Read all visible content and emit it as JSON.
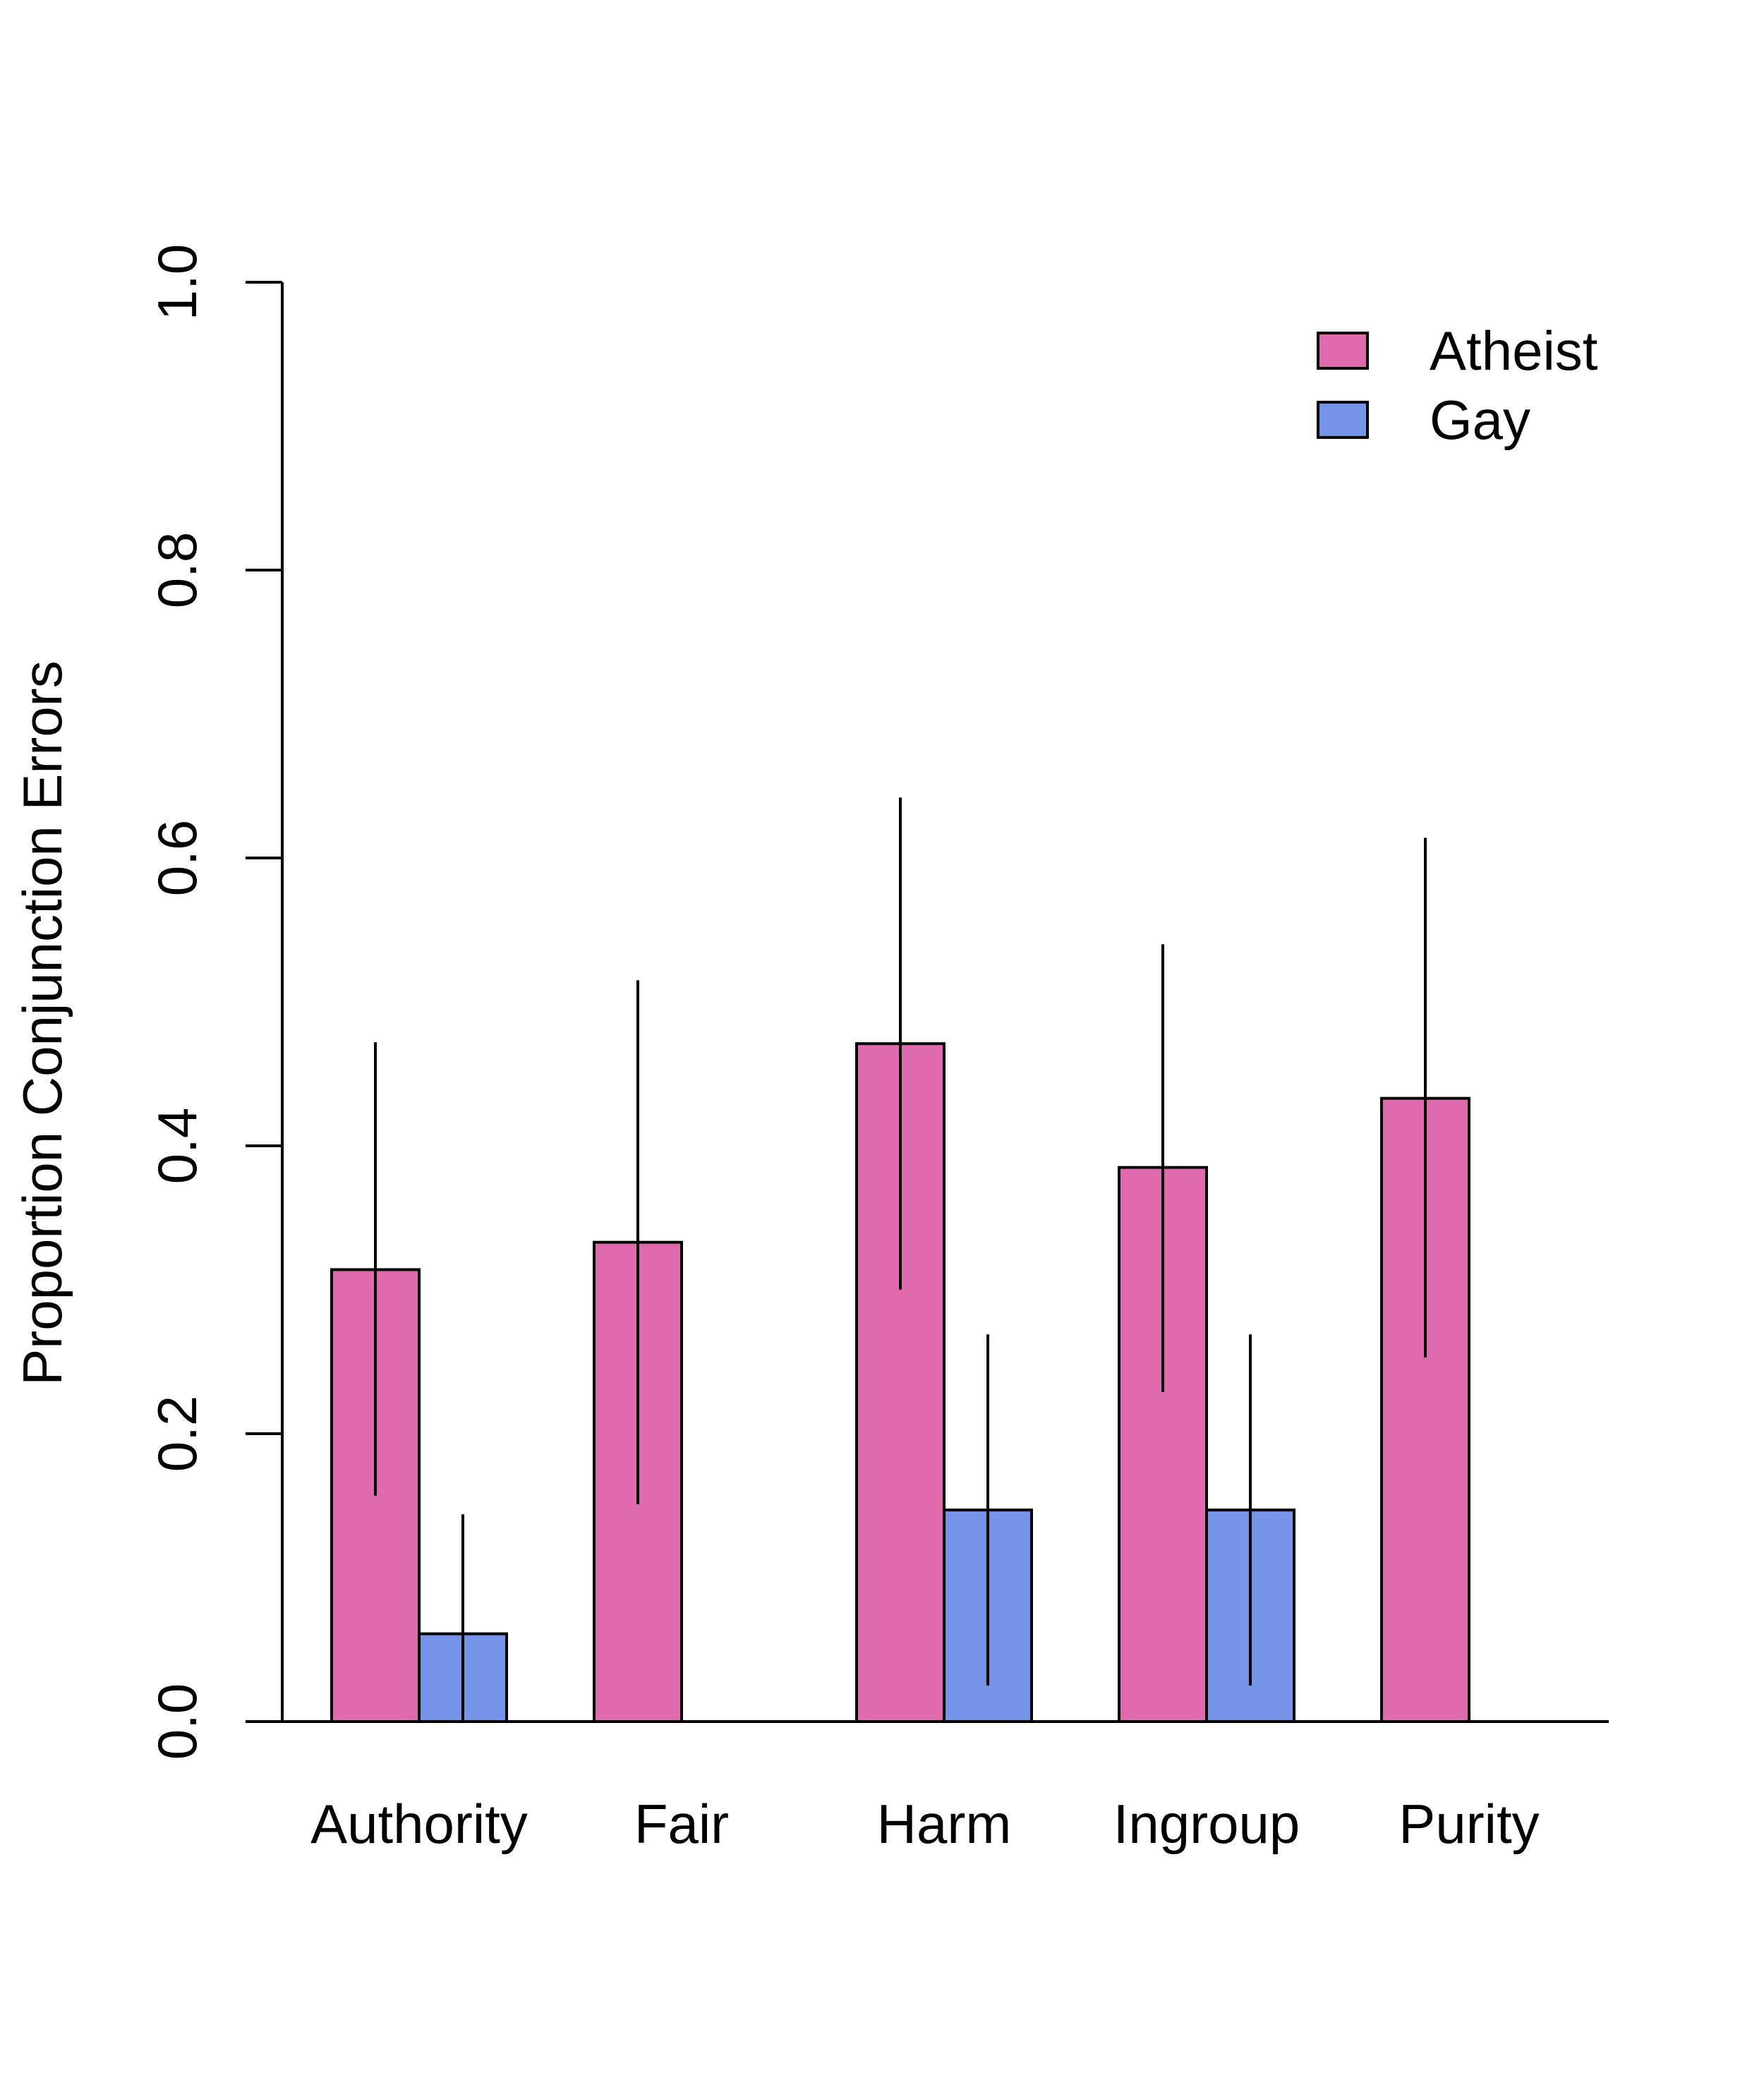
{
  "chart_data": {
    "type": "bar",
    "categories": [
      "Authority",
      "Fair",
      "Harm",
      "Ingroup",
      "Purity"
    ],
    "series": [
      {
        "name": "Atheist",
        "color": "#E06AAE",
        "values": [
          0.314,
          0.333,
          0.471,
          0.385,
          0.433
        ],
        "error_low": [
          0.157,
          0.151,
          0.3,
          0.229,
          0.253
        ],
        "error_high": [
          0.472,
          0.515,
          0.642,
          0.54,
          0.614
        ]
      },
      {
        "name": "Gay",
        "color": "#7593E8",
        "values": [
          0.061,
          null,
          0.147,
          0.147,
          null
        ],
        "error_low": [
          0.0,
          null,
          0.025,
          0.025,
          null
        ],
        "error_high": [
          0.144,
          null,
          0.269,
          0.269,
          null
        ]
      }
    ],
    "title": "",
    "xlabel": "",
    "ylabel": "Proportion Conjunction Errors",
    "ylim": [
      0,
      1
    ],
    "yticks": [
      "0.0",
      "0.2",
      "0.4",
      "0.6",
      "0.8",
      "1.0"
    ],
    "grid": false,
    "legend_position": "top-right"
  }
}
